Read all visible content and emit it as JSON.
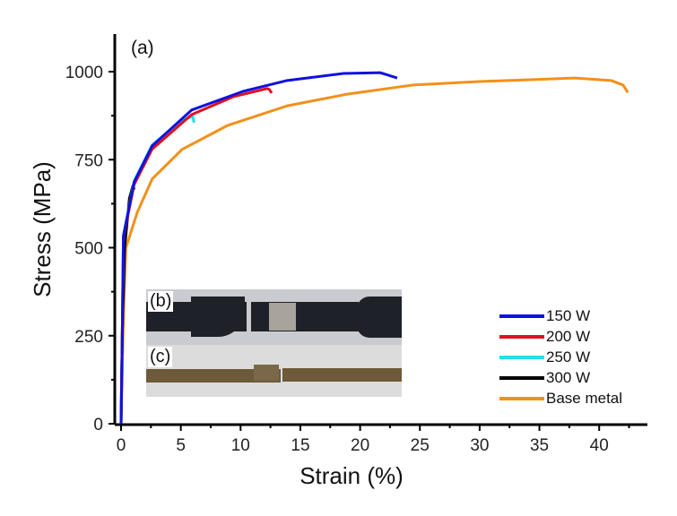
{
  "chart_data": {
    "type": "line",
    "title": "",
    "panel_label": "(a)",
    "xlabel": "Strain (%)",
    "ylabel": "Stress (MPa)",
    "xlim": [
      -0.5,
      44.2
    ],
    "ylim": [
      0,
      1100
    ],
    "xticks": [
      0,
      5,
      10,
      15,
      20,
      25,
      30,
      35,
      40
    ],
    "yticks": [
      0,
      250,
      500,
      750,
      1000
    ],
    "grid": false,
    "legend_position": "bottom-right",
    "series": [
      {
        "name": "150 W",
        "color": "#1010e0",
        "points": [
          [
            0,
            0
          ],
          [
            0.1,
            250
          ],
          [
            0.2,
            534
          ],
          [
            1.1,
            687
          ],
          [
            2.6,
            789
          ],
          [
            5.9,
            891
          ],
          [
            10.2,
            944
          ],
          [
            13.9,
            975
          ],
          [
            18.6,
            995
          ],
          [
            21.7,
            997
          ],
          [
            23.1,
            982
          ]
        ]
      },
      {
        "name": "200 W",
        "color": "#e01020",
        "points": [
          [
            0,
            0
          ],
          [
            0.1,
            250
          ],
          [
            0.2,
            530
          ],
          [
            1.1,
            680
          ],
          [
            2.6,
            780
          ],
          [
            5.9,
            878
          ],
          [
            9.4,
            929
          ],
          [
            12.2,
            952
          ],
          [
            12.4,
            950
          ],
          [
            12.6,
            939
          ]
        ]
      },
      {
        "name": "250 W",
        "color": "#20e0e8",
        "points": [
          [
            0,
            0
          ],
          [
            0.1,
            250
          ],
          [
            0.2,
            535
          ],
          [
            1.1,
            690
          ],
          [
            2.6,
            792
          ],
          [
            5.0,
            860
          ],
          [
            6.0,
            873
          ],
          [
            6.1,
            855
          ]
        ]
      },
      {
        "name": "300 W",
        "color": "#000000",
        "points": [
          [
            0,
            0
          ],
          [
            0.1,
            250
          ],
          [
            0.3,
            500
          ],
          [
            0.7,
            640
          ],
          [
            1.0,
            677
          ],
          [
            1.1,
            665
          ]
        ]
      },
      {
        "name": "Base metal",
        "color": "#f39019",
        "points": [
          [
            0,
            0
          ],
          [
            0.2,
            300
          ],
          [
            0.4,
            499
          ],
          [
            1.35,
            600
          ],
          [
            2.6,
            695
          ],
          [
            5.1,
            779
          ],
          [
            8.9,
            847
          ],
          [
            13.9,
            903
          ],
          [
            18.9,
            936
          ],
          [
            24.4,
            962
          ],
          [
            30,
            972
          ],
          [
            35,
            978
          ],
          [
            38,
            982
          ],
          [
            41,
            975
          ],
          [
            42,
            962
          ],
          [
            42.4,
            941
          ]
        ]
      }
    ]
  },
  "insets": [
    {
      "label": "(b)"
    },
    {
      "label": "(c)"
    }
  ]
}
